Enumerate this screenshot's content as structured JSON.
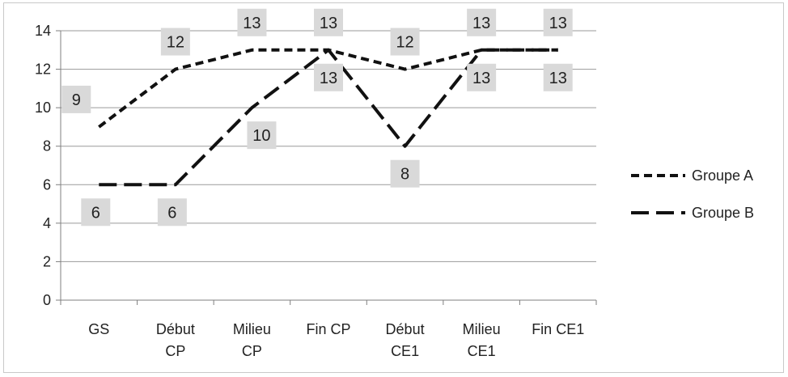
{
  "chart_data": {
    "type": "line",
    "categories": [
      "GS",
      "Début\nCP",
      "Milieu\nCP",
      "Fin CP",
      "Début\nCE1",
      "Milieu\nCE1",
      "Fin CE1"
    ],
    "series": [
      {
        "name": "Groupe A",
        "values": [
          9,
          12,
          13,
          13,
          12,
          13,
          13
        ],
        "dash": "dashed",
        "color": "#111111"
      },
      {
        "name": "Groupe B",
        "values": [
          6,
          6,
          10,
          13,
          8,
          13,
          13
        ],
        "dash": "long-dash",
        "color": "#111111"
      }
    ],
    "ylim": [
      0,
      14
    ],
    "yticks": [
      0,
      2,
      4,
      6,
      8,
      10,
      12,
      14
    ],
    "grid": true,
    "legend": "right",
    "data_label_bg": "#d9d9d9"
  }
}
